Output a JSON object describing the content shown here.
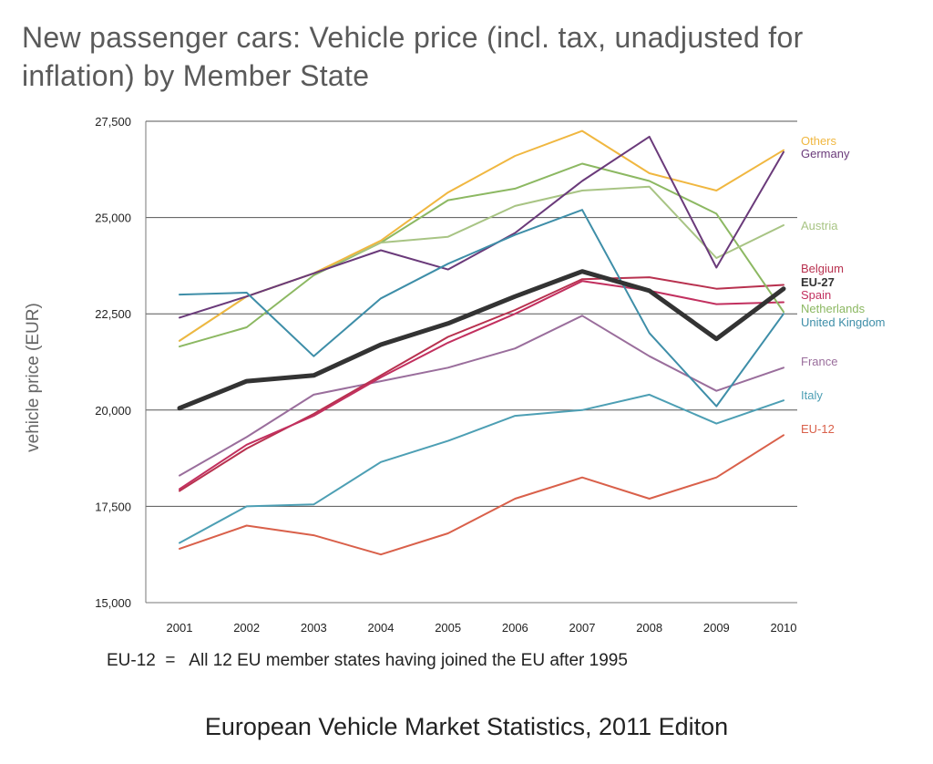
{
  "title": "New passenger cars: Vehicle price (incl. tax, unadjusted for inflation) by Member State",
  "footnote": "EU-12  =   All 12 EU member states having joined the EU after 1995",
  "source": "European Vehicle Market Statistics, 2011 Editon",
  "chart_data": {
    "type": "line",
    "title": "New passenger cars: Vehicle price (incl. tax, unadjusted for inflation) by Member State",
    "xlabel": "",
    "ylabel": "vehicle price (EUR)",
    "ylim": [
      15000,
      27500
    ],
    "yticks": [
      15000,
      17500,
      20000,
      22500,
      25000,
      27500
    ],
    "ytick_labels": [
      "15,000",
      "17,500",
      "20,000",
      "22,500",
      "25,000",
      "27,500"
    ],
    "categories": [
      "2001",
      "2002",
      "2003",
      "2004",
      "2005",
      "2006",
      "2007",
      "2008",
      "2009",
      "2010"
    ],
    "grid": "horizontal",
    "series": [
      {
        "name": "EU-12",
        "color": "#d9604a",
        "bold": false,
        "values": [
          16400,
          17000,
          16750,
          16250,
          16800,
          17700,
          18250,
          17700,
          18250,
          19350
        ]
      },
      {
        "name": "Italy",
        "color": "#4d9fb4",
        "bold": false,
        "values": [
          16550,
          17500,
          17550,
          18650,
          19200,
          19850,
          20000,
          20400,
          19650,
          20250
        ]
      },
      {
        "name": "France",
        "color": "#9a6e9c",
        "bold": false,
        "values": [
          18300,
          19300,
          20400,
          20750,
          21100,
          21600,
          22450,
          21400,
          20500,
          21100
        ]
      },
      {
        "name": "Belgium",
        "color": "#b8314f",
        "bold": false,
        "values": [
          17900,
          19000,
          19900,
          20900,
          21900,
          22600,
          23400,
          23450,
          23150,
          23250
        ]
      },
      {
        "name": "Spain",
        "color": "#c2305f",
        "bold": false,
        "values": [
          17950,
          19100,
          19850,
          20850,
          21750,
          22500,
          23350,
          23100,
          22750,
          22800
        ]
      },
      {
        "name": "Netherlands",
        "color": "#8cb862",
        "bold": false,
        "values": [
          21650,
          22150,
          23500,
          24350,
          25450,
          25750,
          26400,
          25950,
          25100,
          22550
        ]
      },
      {
        "name": "Austria",
        "color": "#a8c484",
        "bold": false,
        "values": [
          21800,
          22950,
          23550,
          24350,
          24500,
          25300,
          25700,
          25800,
          23950,
          24800
        ]
      },
      {
        "name": "Others",
        "color": "#f0b740",
        "bold": false,
        "values": [
          21800,
          22950,
          23550,
          24400,
          25650,
          26600,
          27250,
          26150,
          25700,
          26750
        ]
      },
      {
        "name": "Germany",
        "color": "#6a3a7a",
        "bold": false,
        "values": [
          22400,
          22950,
          23550,
          24150,
          23650,
          24600,
          25950,
          27100,
          23700,
          26700
        ]
      },
      {
        "name": "United Kingdom",
        "color": "#3e8ea8",
        "bold": false,
        "values": [
          23000,
          23050,
          21400,
          22900,
          23800,
          24550,
          25200,
          22000,
          20100,
          22500
        ]
      },
      {
        "name": "EU-27",
        "color": "#333333",
        "bold": true,
        "values": [
          20050,
          20750,
          20900,
          21700,
          22250,
          22950,
          23600,
          23100,
          21850,
          23150
        ]
      }
    ],
    "legend": [
      {
        "name": "Others",
        "color": "#f0b740",
        "bold": false
      },
      {
        "name": "Germany",
        "color": "#6a3a7a",
        "bold": false
      },
      {
        "name": "Austria",
        "color": "#a8c484",
        "bold": false
      },
      {
        "name": "Belgium",
        "color": "#b8314f",
        "bold": false
      },
      {
        "name": "EU-27",
        "color": "#333333",
        "bold": true
      },
      {
        "name": "Spain",
        "color": "#c2305f",
        "bold": false
      },
      {
        "name": "Netherlands",
        "color": "#8cb862",
        "bold": false
      },
      {
        "name": "United Kingdom",
        "color": "#3e8ea8",
        "bold": false
      },
      {
        "name": "France",
        "color": "#9a6e9c",
        "bold": false
      },
      {
        "name": "Italy",
        "color": "#4d9fb4",
        "bold": false
      },
      {
        "name": "EU-12",
        "color": "#d9604a",
        "bold": false
      }
    ],
    "legend_placement": "right, at line ends"
  }
}
